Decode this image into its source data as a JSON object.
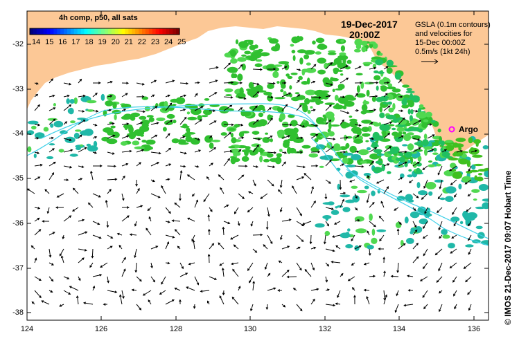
{
  "title": {
    "date": "19-Dec-2017",
    "time": "20:00Z"
  },
  "colorbar": {
    "label": "4h comp, p50, all sats",
    "ticks": [
      "14",
      "15",
      "16",
      "17",
      "18",
      "19",
      "20",
      "21",
      "22",
      "23",
      "24",
      "25"
    ],
    "colors": [
      "#00007f",
      "#0000ff",
      "#007fff",
      "#00ffff",
      "#7fff7f",
      "#ffff00",
      "#ff7f00",
      "#ff0000",
      "#7f0000"
    ]
  },
  "legend": {
    "lines": [
      "GSLA (0.1m contours)",
      "and velocities for",
      "15-Dec 00:00Z",
      "0.5m/s (1kt 24h)"
    ]
  },
  "argo": {
    "label": "Argo",
    "color": "#ff00ff"
  },
  "axes": {
    "y_ticks": [
      "-32",
      "-33",
      "-34",
      "-35",
      "-36",
      "-37",
      "-38"
    ],
    "x_ticks": [
      "124",
      "126",
      "128",
      "130",
      "132",
      "134",
      "136"
    ]
  },
  "credit": "© IMOS 21-Dec-2017 09:07 Hobart Time",
  "colors": {
    "land": "#fcc896",
    "contour": "#40d0e8",
    "sst_green": "#30c030",
    "sst_cyan": "#20b8a8"
  }
}
